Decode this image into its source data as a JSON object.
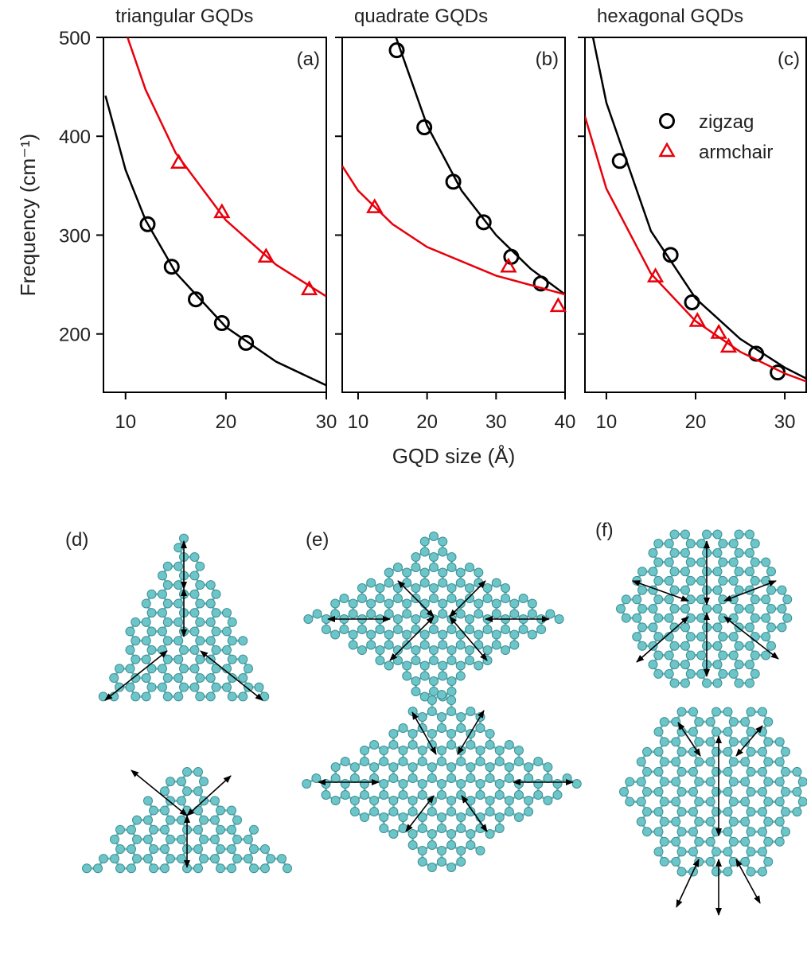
{
  "chart_data": [
    {
      "type": "line",
      "title": "triangular GQDs",
      "panel_label": "(a)",
      "y_label": "Frequency (cm⁻¹)",
      "xlim": [
        7.8,
        30
      ],
      "ylim": [
        141,
        500
      ],
      "xticks": [
        10,
        20,
        30
      ],
      "yticks": [
        200,
        300,
        400,
        500
      ],
      "series": [
        {
          "color": "#000000",
          "marker": "circle",
          "x": [
            12.2,
            14.6,
            17,
            19.6,
            22
          ],
          "values": [
            311,
            268,
            235,
            211,
            191
          ],
          "fit_x": [
            8,
            10,
            12,
            15,
            20,
            25,
            30
          ],
          "fit_values": [
            441,
            366,
            315,
            262,
            207,
            172,
            148
          ]
        },
        {
          "color": "#e8000b",
          "marker": "triangle",
          "x": [
            15.3,
            19.6,
            24,
            28.3
          ],
          "values": [
            373,
            323,
            278,
            245
          ],
          "fit_x": [
            10.2,
            12,
            15,
            20,
            25,
            30
          ],
          "fit_values": [
            500,
            447,
            383,
            315,
            270,
            238
          ]
        }
      ]
    },
    {
      "type": "line",
      "title": "quadrate GQDs",
      "panel_label": "(b)",
      "x_label": "GQD size (Å)",
      "xlim": [
        7.7,
        40
      ],
      "ylim": [
        141,
        500
      ],
      "xticks": [
        10,
        20,
        30,
        40
      ],
      "series": [
        {
          "color": "#000000",
          "marker": "circle",
          "x": [
            15.6,
            19.6,
            23.8,
            28.2,
            32.2,
            36.5
          ],
          "values": [
            487,
            409,
            354,
            313,
            278,
            251
          ],
          "fit_x": [
            15.5,
            20,
            25,
            30,
            35,
            40
          ],
          "fit_values": [
            500,
            411,
            345,
            300,
            266,
            240
          ]
        },
        {
          "color": "#e8000b",
          "marker": "triangle",
          "x": [
            12.4,
            31.8,
            39
          ],
          "values": [
            328,
            268,
            228
          ],
          "fit_x": [
            7.7,
            10,
            15,
            20,
            30,
            40
          ],
          "fit_values": [
            370,
            345,
            311,
            288,
            259,
            240
          ]
        }
      ]
    },
    {
      "type": "line",
      "title": "hexagonal GQDs",
      "panel_label": "(c)",
      "legend": "upper right",
      "xlim": [
        7.6,
        32.4
      ],
      "ylim": [
        141,
        500
      ],
      "xticks": [
        10,
        20,
        30
      ],
      "series": [
        {
          "name": "zigzag",
          "color": "#000000",
          "marker": "circle",
          "x": [
            11.5,
            17.2,
            19.6,
            26.8,
            29.2
          ],
          "values": [
            375,
            280,
            232,
            180,
            161
          ],
          "fit_x": [
            8.5,
            10,
            15,
            20,
            25,
            30,
            32.4
          ],
          "fit_values": [
            500,
            434,
            304,
            236,
            195,
            166,
            155
          ]
        },
        {
          "name": "armchair",
          "color": "#e8000b",
          "marker": "triangle",
          "x": [
            15.5,
            20.2,
            22.6,
            23.7
          ],
          "values": [
            258,
            213,
            201,
            187
          ],
          "fit_x": [
            7.6,
            10,
            15,
            20,
            25,
            30,
            32.4
          ],
          "fit_values": [
            420,
            347,
            261,
            213,
            182,
            160,
            152
          ]
        }
      ]
    }
  ],
  "structure_labels": [
    "(d)",
    "(e)",
    "(f)"
  ]
}
